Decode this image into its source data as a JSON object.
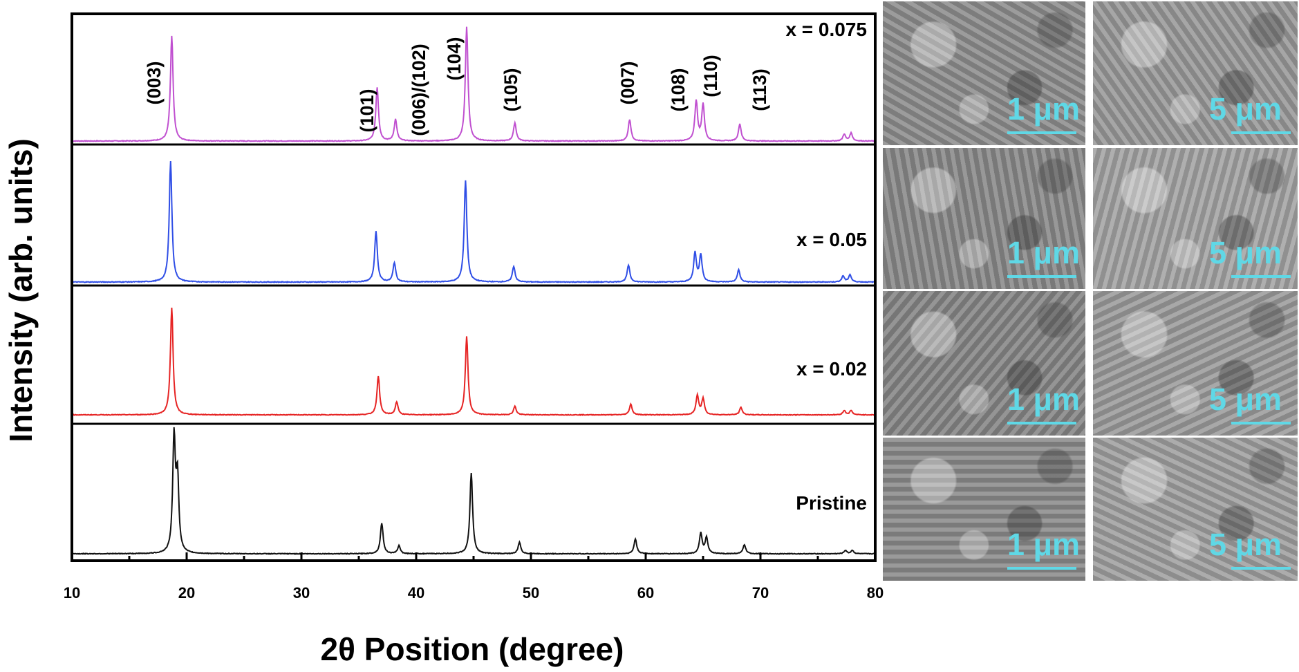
{
  "chart_data": {
    "type": "line",
    "xlabel": "2θ Position (degree)",
    "ylabel": "Intensity (arb. units)",
    "xlim": [
      10,
      80
    ],
    "xticks": [
      10,
      20,
      30,
      40,
      50,
      60,
      70,
      80
    ],
    "grid": false,
    "legend": "none",
    "reflections": [
      {
        "label": "(003)",
        "x": 18.7
      },
      {
        "label": "(101)",
        "x": 36.6
      },
      {
        "label": "(006)/(102)",
        "x": 38.2
      },
      {
        "label": "(104)",
        "x": 44.4
      },
      {
        "label": "(105)",
        "x": 48.6
      },
      {
        "label": "(007)",
        "x": 58.6
      },
      {
        "label": "(108)",
        "x": 64.3
      },
      {
        "label": "(110)",
        "x": 65.0
      },
      {
        "label": "(113)",
        "x": 68.2
      }
    ],
    "series": [
      {
        "name": "x = 0.075",
        "color": "#c050d0",
        "peaks": [
          [
            18.7,
            0.92
          ],
          [
            36.6,
            0.47
          ],
          [
            38.2,
            0.19
          ],
          [
            44.4,
            1.0
          ],
          [
            48.6,
            0.16
          ],
          [
            58.6,
            0.19
          ],
          [
            64.4,
            0.35
          ],
          [
            65.0,
            0.32
          ],
          [
            68.2,
            0.15
          ],
          [
            77.3,
            0.06
          ],
          [
            77.9,
            0.07
          ]
        ]
      },
      {
        "name": "x = 0.05",
        "color": "#2f4ee6",
        "peaks": [
          [
            18.6,
            1.0
          ],
          [
            36.5,
            0.42
          ],
          [
            38.1,
            0.16
          ],
          [
            44.3,
            0.84
          ],
          [
            48.5,
            0.13
          ],
          [
            58.5,
            0.14
          ],
          [
            64.3,
            0.24
          ],
          [
            64.8,
            0.22
          ],
          [
            68.1,
            0.1
          ],
          [
            77.2,
            0.05
          ],
          [
            77.8,
            0.06
          ]
        ]
      },
      {
        "name": "x = 0.02",
        "color": "#e62424",
        "peaks": [
          [
            18.7,
            1.0
          ],
          [
            36.7,
            0.36
          ],
          [
            38.3,
            0.12
          ],
          [
            44.4,
            0.73
          ],
          [
            48.6,
            0.08
          ],
          [
            58.7,
            0.1
          ],
          [
            64.5,
            0.18
          ],
          [
            65.0,
            0.15
          ],
          [
            68.3,
            0.07
          ],
          [
            77.3,
            0.04
          ],
          [
            77.9,
            0.04
          ]
        ]
      },
      {
        "name": "Pristine",
        "color": "#111111",
        "peaks": [
          [
            18.9,
            1.0
          ],
          [
            19.2,
            0.63
          ],
          [
            37.0,
            0.27
          ],
          [
            38.5,
            0.07
          ],
          [
            44.8,
            0.71
          ],
          [
            49.0,
            0.1
          ],
          [
            59.1,
            0.13
          ],
          [
            64.8,
            0.18
          ],
          [
            65.3,
            0.14
          ],
          [
            68.6,
            0.08
          ],
          [
            77.4,
            0.03
          ],
          [
            78.0,
            0.03
          ]
        ]
      }
    ]
  },
  "sem": {
    "scale_1": "1 μm",
    "scale_5": "5 μm",
    "tones": [
      "#8e8e8e",
      "#9a9a9a",
      "#8a8a8a",
      "#a4a4a4",
      "#868686",
      "#9c9c9c",
      "#8c8c8c",
      "#a0a0a0"
    ]
  }
}
